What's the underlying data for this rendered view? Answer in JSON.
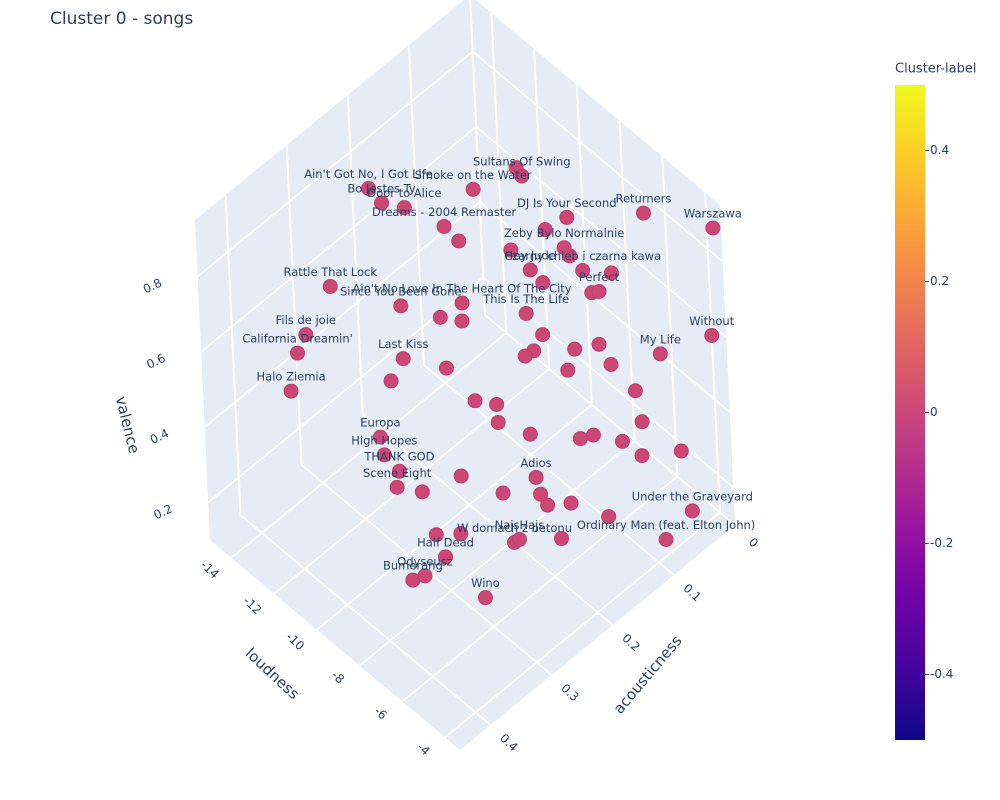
{
  "chart_data": {
    "type": "scatter3d",
    "title": "Cluster 0 - songs",
    "x_label": "loudness",
    "y_label": "acousticness",
    "z_label": "valence",
    "xlim": [
      -15,
      -3.3
    ],
    "ylim": [
      0,
      0.45
    ],
    "zlim": [
      0.1,
      0.95
    ],
    "xticks": [
      -14,
      -12,
      -10,
      -8,
      -6,
      -4
    ],
    "yticks": [
      0,
      0.1,
      0.2,
      0.3,
      0.4
    ],
    "zticks": [
      0.2,
      0.4,
      0.6,
      0.8
    ],
    "color": "#cc4778",
    "labels": [
      "Sultans Of Swing",
      "Smoke on the Water",
      "Bo Jestes Ty",
      "Door to Alice",
      "Ain't Got No, I Got Life",
      "Dreams - 2004 Remaster",
      "DJ Is Your Second",
      "Warszawa",
      "Returners",
      "Hey Jude",
      "Rattle That Lock",
      "Fils de joie",
      "Halo Ziemia",
      "California Dreamin'",
      "Since You Been Gone",
      "Ain't No Love In The Heart Of The City",
      "Perfect",
      "Zeby Bylo Normalnie",
      "Czarny chleb i czarna kawa",
      "Without",
      "Last Kiss",
      "Under the Graveyard",
      "Ordinary Man (feat. Elton John)",
      "Wino",
      "Odyseusz",
      "Bumerang",
      "Half Dead",
      "W domach z betonu",
      "NajsHajs",
      "THANK GOD",
      "Scene Eight",
      "High Hopes",
      "Adios",
      "This Is The Life",
      "Europa",
      "My Life",
      null,
      null,
      null,
      null,
      null,
      null,
      null,
      null,
      null,
      null,
      null,
      null,
      null,
      null,
      null,
      null,
      null,
      null,
      null,
      null,
      null,
      null,
      null,
      null,
      null,
      null,
      null,
      null,
      null,
      null,
      null,
      null,
      null,
      null,
      null,
      null,
      null,
      null,
      null,
      null
    ],
    "x": [
      -9.8,
      -12.2,
      -13.6,
      -12.5,
      -14.2,
      -13.7,
      -7.7,
      -3.7,
      -5.5,
      -9.6,
      -13.2,
      -14.5,
      -13.8,
      -13.4,
      -12.9,
      -13.0,
      -6.3,
      -7.9,
      -7.05,
      -4.0,
      -12.9,
      -3.8,
      -3.6,
      -6.35,
      -7.7,
      -8.3,
      -8.2,
      -7.9,
      -7.65,
      -10.25,
      -10.4,
      -10.95,
      -6.7,
      -9.9,
      -11.1,
      -5.0,
      -9.0,
      -8.5,
      -8.0,
      -7.5,
      -7.0,
      -6.5,
      -6.0,
      -5.5,
      -9.5,
      -10.0,
      -8.8,
      -7.8,
      -6.8,
      -6.2,
      -5.8,
      -5.2,
      -4.8,
      -9.2,
      -8.2,
      -7.2,
      -6.3,
      -11.0,
      -11.5,
      -10.5,
      -12.0,
      -9.8,
      -8.6,
      -7.4,
      -6.6,
      -5.6,
      -4.5,
      -4.2,
      -10.2,
      -8.4,
      -7.6,
      -6.9,
      -5.9,
      -9.4,
      -11.6,
      -12.4
    ],
    "y": [
      0.1,
      0.1,
      0.2,
      0.2,
      0.2,
      0.1,
      0.1,
      0.0,
      0.05,
      0.1,
      0.3,
      0.3,
      0.35,
      0.35,
      0.2,
      0.1,
      0.1,
      0.1,
      0.1,
      0.0,
      0.2,
      0.05,
      0.1,
      0.3,
      0.35,
      0.35,
      0.3,
      0.2,
      0.2,
      0.3,
      0.3,
      0.3,
      0.2,
      0.1,
      0.3,
      0.05,
      0.12,
      0.15,
      0.1,
      0.18,
      0.12,
      0.08,
      0.15,
      0.1,
      0.2,
      0.15,
      0.25,
      0.22,
      0.25,
      0.2,
      0.12,
      0.08,
      0.15,
      0.05,
      0.05,
      0.05,
      0.05,
      0.2,
      0.15,
      0.1,
      0.25,
      0.28,
      0.3,
      0.3,
      0.15,
      0.2,
      0.1,
      0.05,
      0.22,
      0.12,
      0.15,
      0.1,
      0.22,
      0.08,
      0.05,
      0.12
    ],
    "z": [
      0.85,
      0.7,
      0.73,
      0.77,
      0.74,
      0.53,
      0.84,
      0.87,
      0.89,
      0.61,
      0.66,
      0.47,
      0.42,
      0.54,
      0.49,
      0.36,
      0.71,
      0.75,
      0.73,
      0.57,
      0.35,
      0.18,
      0.18,
      0.16,
      0.22,
      0.18,
      0.18,
      0.1,
      0.12,
      0.31,
      0.26,
      0.32,
      0.33,
      0.48,
      0.36,
      0.54,
      0.45,
      0.5,
      0.42,
      0.38,
      0.55,
      0.48,
      0.4,
      0.35,
      0.4,
      0.3,
      0.3,
      0.45,
      0.35,
      0.28,
      0.62,
      0.3,
      0.25,
      0.6,
      0.55,
      0.65,
      0.38,
      0.55,
      0.45,
      0.62,
      0.4,
      0.25,
      0.22,
      0.28,
      0.2,
      0.22,
      0.45,
      0.32,
      0.48,
      0.66,
      0.6,
      0.3,
      0.35,
      0.7,
      0.72,
      0.58
    ],
    "colorbar": {
      "title": "Cluster-label",
      "lim": [
        -0.5,
        0.5
      ],
      "ticks": [
        -0.4,
        -0.2,
        0,
        0.2,
        0.4
      ],
      "colorscale": [
        "#0d0887",
        "#46039f",
        "#7201a8",
        "#9c179e",
        "#bd3786",
        "#d8576b",
        "#ed7953",
        "#fb9f3a",
        "#fdca26",
        "#f0f921"
      ]
    }
  }
}
